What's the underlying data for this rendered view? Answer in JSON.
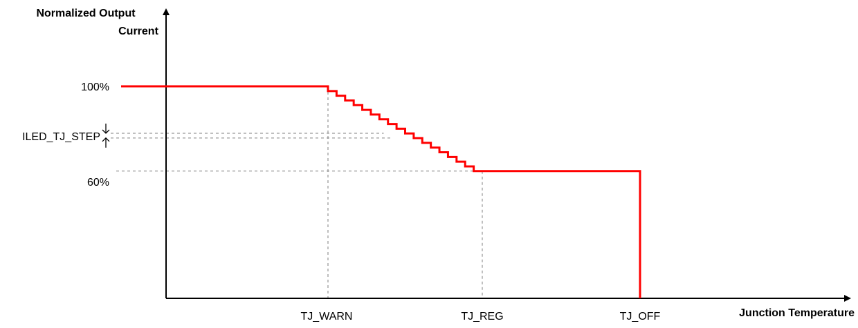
{
  "chart_data": {
    "type": "line",
    "ylabel_lines": [
      "Normalized Output",
      "Current"
    ],
    "xlabel": "Junction Temperature",
    "x_ticks": [
      "TJ_WARN",
      "TJ_REG",
      "TJ_OFF"
    ],
    "y_ticks": [
      "100%",
      "60%"
    ],
    "step_annotation": "ILED_TJ_STEP",
    "grid": false,
    "series": [
      {
        "color": "#ff0000",
        "segments": [
          {
            "region": "below TJ_WARN",
            "value_percent": 100
          },
          {
            "region": "TJ_WARN to TJ_REG",
            "value_percent_from": 100,
            "value_percent_to": 60,
            "shape": "staircase"
          },
          {
            "region": "TJ_REG to TJ_OFF",
            "value_percent": 60
          },
          {
            "region": "at TJ_OFF",
            "value_percent_from": 60,
            "value_percent_to": 0
          }
        ]
      }
    ],
    "ylim_percent": [
      0,
      100
    ]
  },
  "colors": {
    "curve": "#ff0000",
    "axis": "#000000",
    "guide": "#7f7f7f"
  }
}
